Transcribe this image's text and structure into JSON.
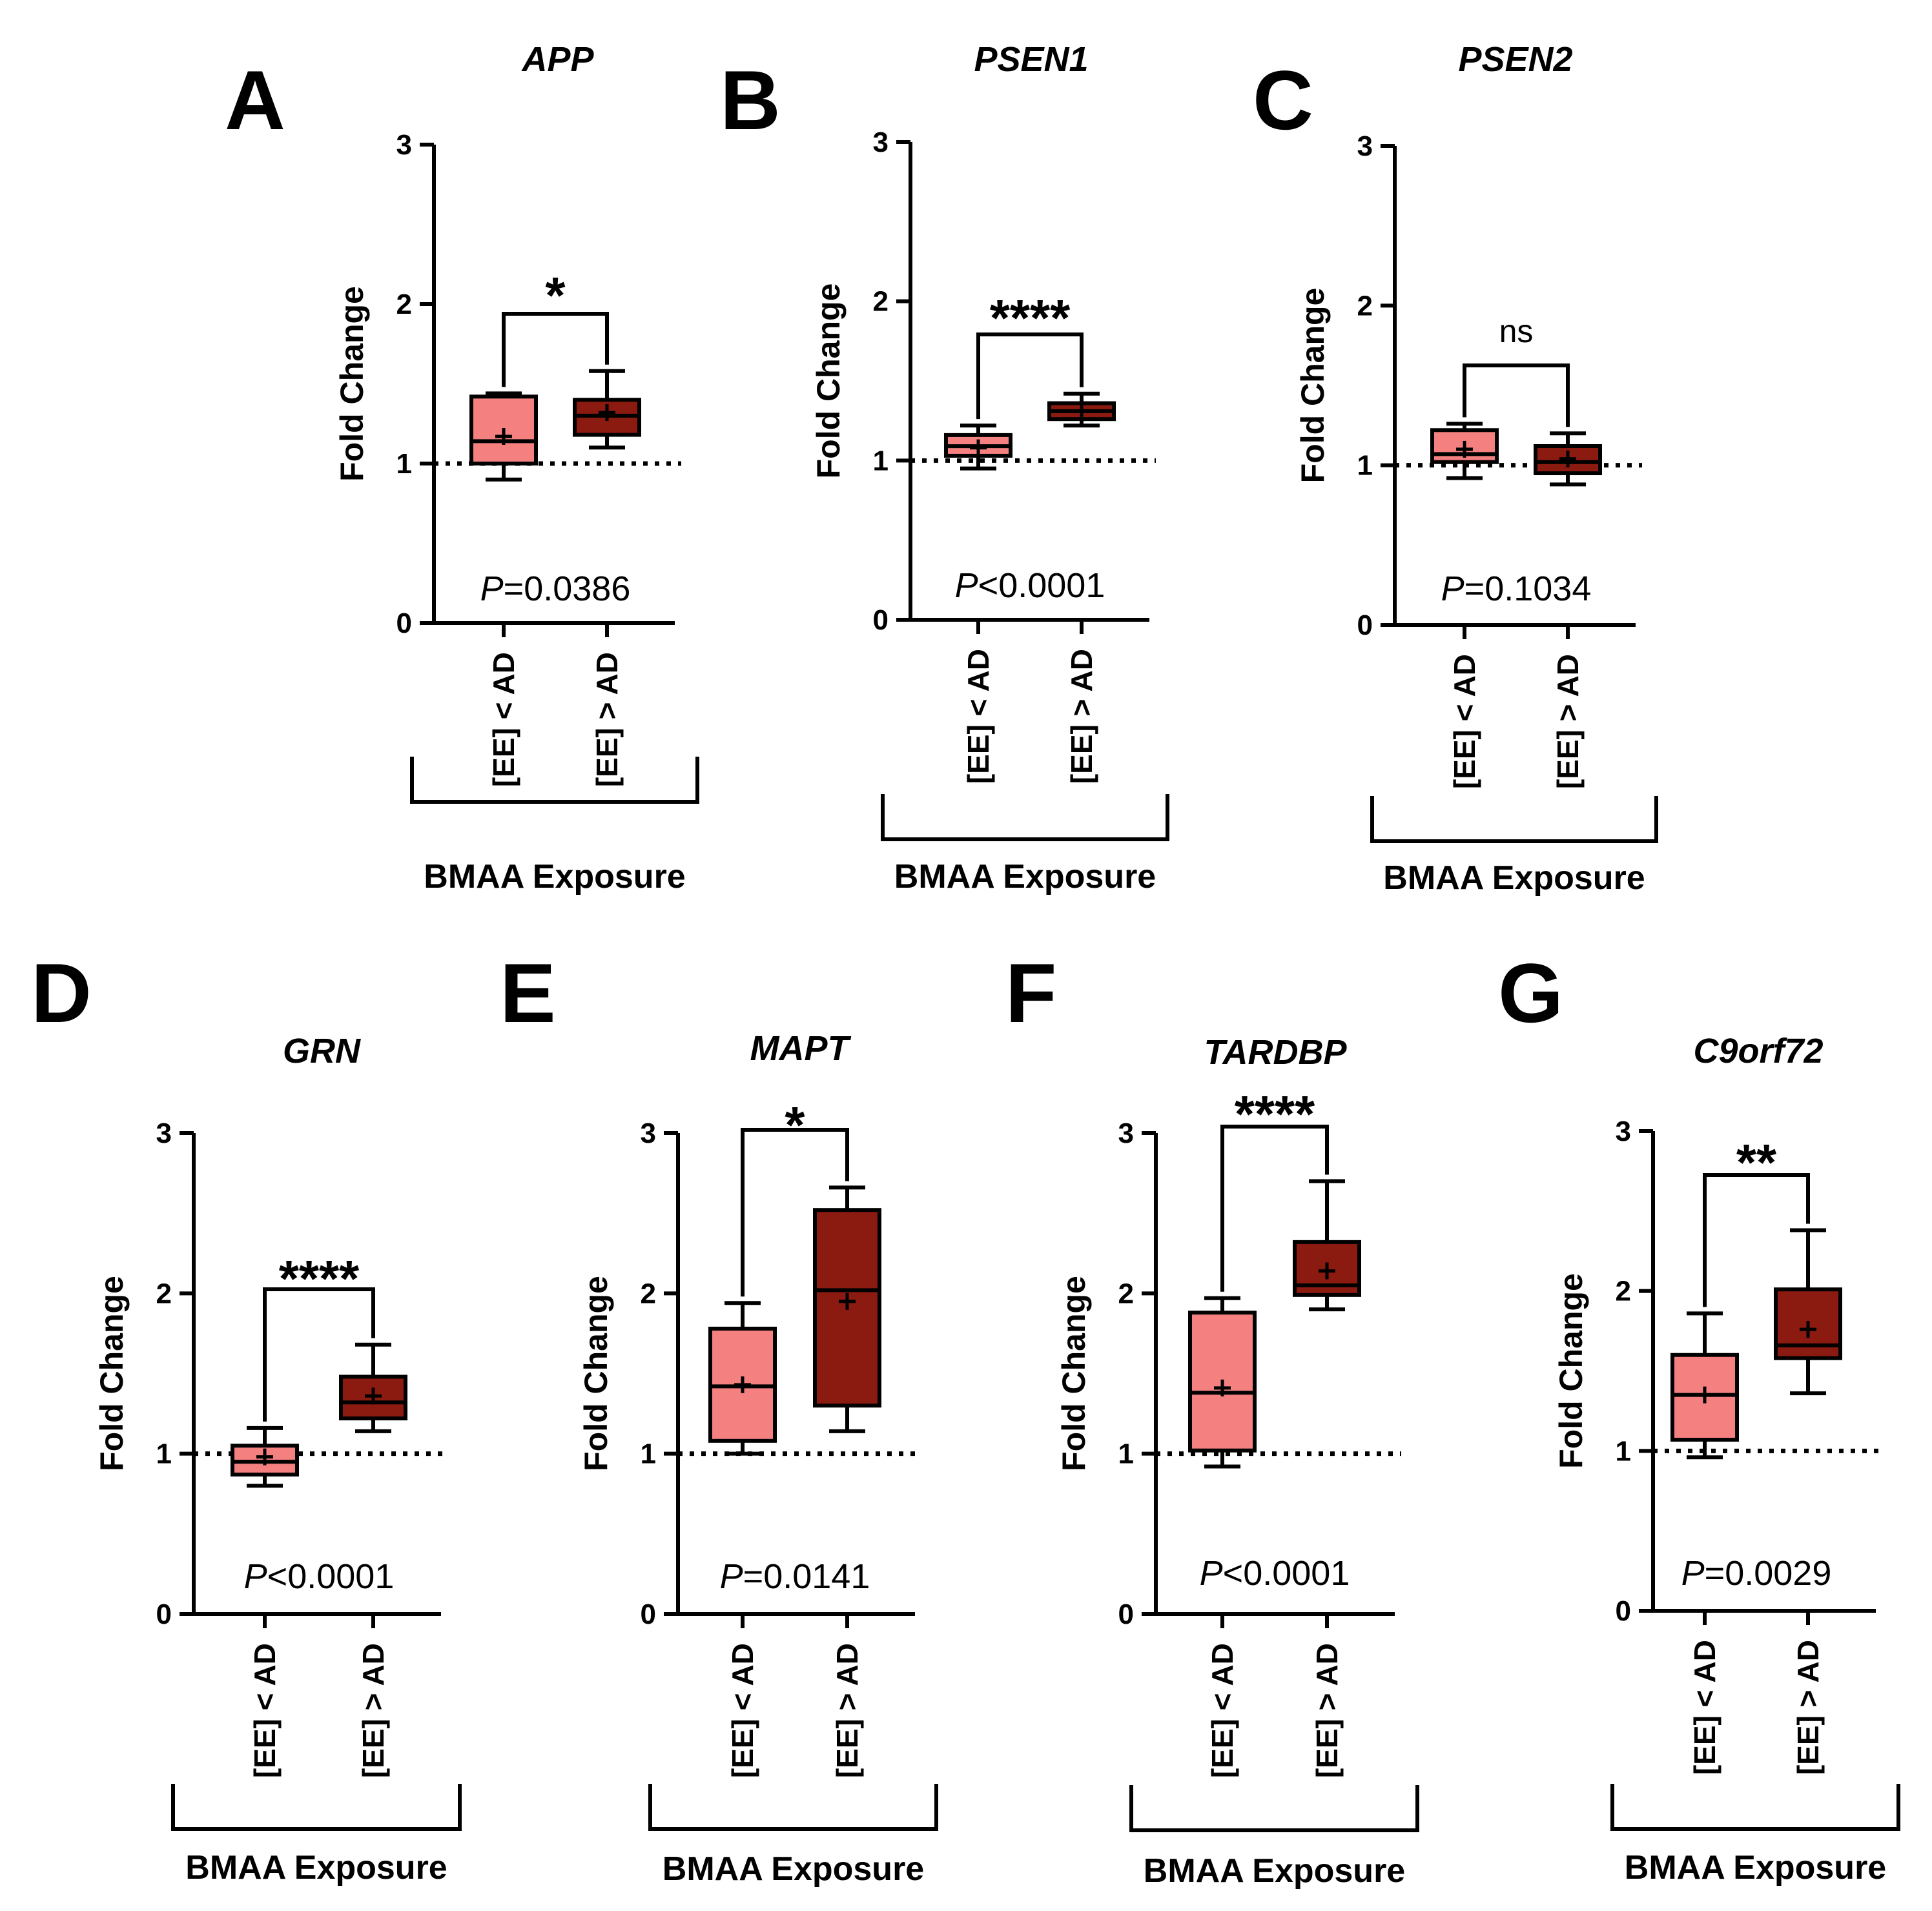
{
  "figure": {
    "group_label": "BMAA Exposure",
    "y_label": "Fold Change",
    "category_labels": [
      "[EE] < AD",
      "[EE] > AD"
    ],
    "colors": {
      "low": "#F48080",
      "high": "#8B1A10",
      "line": "#000000"
    }
  },
  "chart_data": [
    {
      "panel": "A",
      "title": "APP",
      "type": "box",
      "ylabel": "Fold Change",
      "ylim": [
        0,
        3
      ],
      "yticks": [
        0,
        1,
        2,
        3
      ],
      "reference_line": 1,
      "categories": [
        "[EE] < AD",
        "[EE] > AD"
      ],
      "boxes": [
        {
          "min": 0.9,
          "q1": 1.0,
          "median": 1.14,
          "q3": 1.42,
          "max": 1.44,
          "mean": 1.17
        },
        {
          "min": 1.1,
          "q1": 1.18,
          "median": 1.3,
          "q3": 1.4,
          "max": 1.58,
          "mean": 1.32
        }
      ],
      "significance": "*",
      "p_text": "=0.0386"
    },
    {
      "panel": "B",
      "title": "PSEN1",
      "type": "box",
      "ylabel": "Fold Change",
      "ylim": [
        0,
        3
      ],
      "yticks": [
        0,
        1,
        2,
        3
      ],
      "reference_line": 1,
      "categories": [
        "[EE] < AD",
        "[EE] > AD"
      ],
      "boxes": [
        {
          "min": 0.95,
          "q1": 1.03,
          "median": 1.09,
          "q3": 1.16,
          "max": 1.22,
          "mean": 1.08
        },
        {
          "min": 1.22,
          "q1": 1.26,
          "median": 1.31,
          "q3": 1.36,
          "max": 1.42,
          "mean": 1.31
        }
      ],
      "significance": "****",
      "p_text": "<0.0001"
    },
    {
      "panel": "C",
      "title": "PSEN2",
      "type": "box",
      "ylabel": "Fold Change",
      "ylim": [
        0,
        3
      ],
      "yticks": [
        0,
        1,
        2,
        3
      ],
      "reference_line": 1,
      "categories": [
        "[EE] < AD",
        "[EE] > AD"
      ],
      "boxes": [
        {
          "min": 0.92,
          "q1": 1.02,
          "median": 1.07,
          "q3": 1.22,
          "max": 1.26,
          "mean": 1.1
        },
        {
          "min": 0.88,
          "q1": 0.95,
          "median": 1.02,
          "q3": 1.12,
          "max": 1.2,
          "mean": 1.04
        }
      ],
      "significance": "ns",
      "p_text": "=0.1034"
    },
    {
      "panel": "D",
      "title": "GRN",
      "type": "box",
      "ylabel": "Fold Change",
      "ylim": [
        0,
        3
      ],
      "yticks": [
        0,
        1,
        2,
        3
      ],
      "reference_line": 1,
      "categories": [
        "[EE] < AD",
        "[EE] > AD"
      ],
      "boxes": [
        {
          "min": 0.8,
          "q1": 0.87,
          "median": 0.95,
          "q3": 1.05,
          "max": 1.16,
          "mean": 0.98
        },
        {
          "min": 1.14,
          "q1": 1.22,
          "median": 1.32,
          "q3": 1.48,
          "max": 1.68,
          "mean": 1.36
        }
      ],
      "significance": "****",
      "p_text": "<0.0001"
    },
    {
      "panel": "E",
      "title": "MAPT",
      "type": "box",
      "ylabel": "Fold Change",
      "ylim": [
        0,
        3
      ],
      "yticks": [
        0,
        1,
        2,
        3
      ],
      "reference_line": 1,
      "categories": [
        "[EE] < AD",
        "[EE] > AD"
      ],
      "boxes": [
        {
          "min": 1.0,
          "q1": 1.08,
          "median": 1.42,
          "q3": 1.78,
          "max": 1.94,
          "mean": 1.43
        },
        {
          "min": 1.14,
          "q1": 1.3,
          "median": 2.02,
          "q3": 2.52,
          "max": 2.66,
          "mean": 1.95
        }
      ],
      "significance": "*",
      "p_text": "=0.0141"
    },
    {
      "panel": "F",
      "title": "TARDBP",
      "type": "box",
      "ylabel": "Fold Change",
      "ylim": [
        0,
        3
      ],
      "yticks": [
        0,
        1,
        2,
        3
      ],
      "reference_line": 1,
      "categories": [
        "[EE] < AD",
        "[EE] > AD"
      ],
      "boxes": [
        {
          "min": 0.92,
          "q1": 1.02,
          "median": 1.38,
          "q3": 1.88,
          "max": 1.97,
          "mean": 1.41
        },
        {
          "min": 1.9,
          "q1": 1.99,
          "median": 2.05,
          "q3": 2.32,
          "max": 2.7,
          "mean": 2.14
        }
      ],
      "significance": "****",
      "p_text": "<0.0001"
    },
    {
      "panel": "G",
      "title": "C9orf72",
      "type": "box",
      "ylabel": "Fold Change",
      "ylim": [
        0,
        3
      ],
      "yticks": [
        0,
        1,
        2,
        3
      ],
      "reference_line": 1,
      "categories": [
        "[EE] < AD",
        "[EE] > AD"
      ],
      "boxes": [
        {
          "min": 0.96,
          "q1": 1.07,
          "median": 1.35,
          "q3": 1.6,
          "max": 1.86,
          "mean": 1.35
        },
        {
          "min": 1.36,
          "q1": 1.58,
          "median": 1.66,
          "q3": 2.01,
          "max": 2.38,
          "mean": 1.76
        }
      ],
      "significance": "**",
      "p_text": "=0.0029"
    }
  ]
}
